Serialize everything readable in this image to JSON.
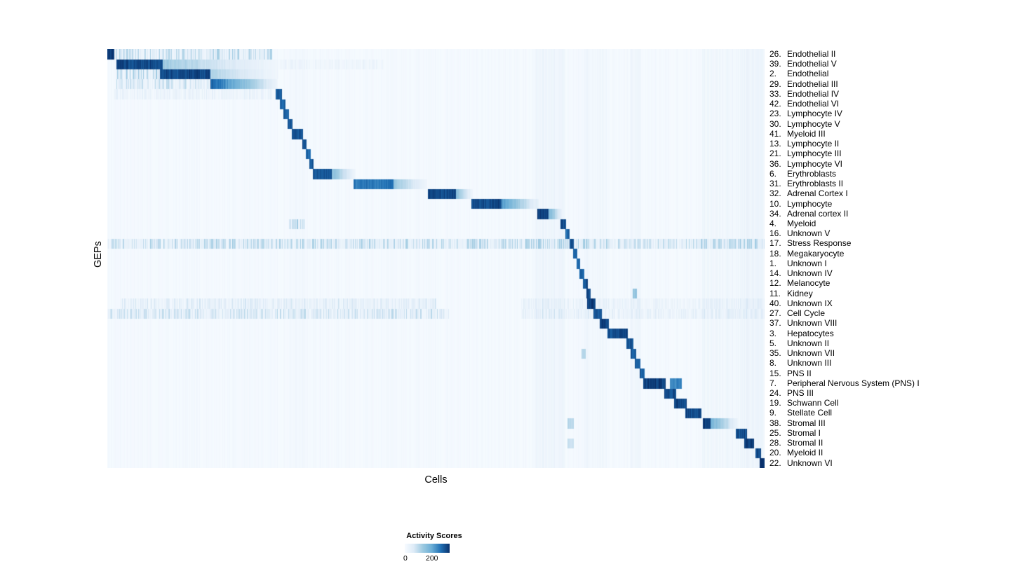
{
  "legend": {
    "title": "Activity Scores",
    "min_label": "0",
    "max_label": "200"
  },
  "chart_data": {
    "type": "heatmap",
    "title": "",
    "xlabel": "Cells",
    "ylabel": "GEPs",
    "value_range": [
      0,
      200
    ],
    "legend_title": "Activity Scores",
    "colormap": [
      "#f7fbff",
      "#deebf7",
      "#9ecae1",
      "#6baed6",
      "#2171b5",
      "#08306b"
    ],
    "column_bands": [
      [
        0.276,
        0.302,
        0.03
      ],
      [
        0.488,
        0.5,
        0.02
      ],
      [
        0.652,
        0.697,
        0.06
      ],
      [
        0.726,
        0.76,
        0.04
      ],
      [
        0.795,
        0.812,
        0.05
      ],
      [
        0.905,
        0.962,
        0.05
      ],
      [
        0.963,
        1.0,
        0.08
      ]
    ],
    "rows": [
      {
        "num": "26.",
        "name": "Endothelial II",
        "segments": [
          [
            0.0,
            0.01,
            1.0,
            0
          ],
          [
            0.012,
            0.25,
            0.22,
            2
          ]
        ]
      },
      {
        "num": "39.",
        "name": "Endothelial V",
        "segments": [
          [
            0.013,
            0.084,
            0.95,
            0
          ],
          [
            0.084,
            0.26,
            0.4,
            1
          ],
          [
            0.26,
            0.42,
            0.06,
            2
          ]
        ]
      },
      {
        "num": "2.",
        "name": "Endothelial",
        "segments": [
          [
            0.013,
            0.08,
            0.25,
            2
          ],
          [
            0.08,
            0.157,
            0.95,
            0
          ],
          [
            0.157,
            0.26,
            0.35,
            1
          ]
        ]
      },
      {
        "num": "29.",
        "name": "Endothelial III",
        "segments": [
          [
            0.013,
            0.155,
            0.18,
            2
          ],
          [
            0.157,
            0.258,
            0.9,
            1
          ]
        ]
      },
      {
        "num": "33.",
        "name": "Endothelial IV",
        "segments": [
          [
            0.256,
            0.265,
            0.9,
            0
          ],
          [
            0.01,
            0.25,
            0.08,
            2
          ]
        ]
      },
      {
        "num": "42.",
        "name": "Endothelial VI",
        "segments": [
          [
            0.262,
            0.271,
            0.85,
            0
          ]
        ]
      },
      {
        "num": "23.",
        "name": "Lymphocyte IV",
        "segments": [
          [
            0.268,
            0.276,
            0.85,
            0
          ]
        ]
      },
      {
        "num": "30.",
        "name": "Lymphocyte V",
        "segments": [
          [
            0.274,
            0.282,
            0.9,
            0
          ]
        ]
      },
      {
        "num": "41.",
        "name": "Myeloid III",
        "segments": [
          [
            0.28,
            0.298,
            0.9,
            0
          ]
        ]
      },
      {
        "num": "13.",
        "name": "Lymphocyte II",
        "segments": [
          [
            0.296,
            0.303,
            0.9,
            0
          ]
        ]
      },
      {
        "num": "21.",
        "name": "Lymphocyte III",
        "segments": [
          [
            0.302,
            0.309,
            0.85,
            0
          ]
        ]
      },
      {
        "num": "36.",
        "name": "Lymphocyte VI",
        "segments": [
          [
            0.307,
            0.314,
            0.9,
            0
          ]
        ]
      },
      {
        "num": "6.",
        "name": "Erythroblasts",
        "segments": [
          [
            0.313,
            0.341,
            0.9,
            0
          ],
          [
            0.341,
            0.378,
            0.5,
            1
          ]
        ]
      },
      {
        "num": "31.",
        "name": "Erythroblasts II",
        "segments": [
          [
            0.374,
            0.435,
            0.8,
            0
          ],
          [
            0.435,
            0.487,
            0.45,
            1
          ]
        ]
      },
      {
        "num": "32.",
        "name": "Adrenal Cortex I",
        "segments": [
          [
            0.488,
            0.53,
            0.95,
            0
          ],
          [
            0.53,
            0.556,
            0.5,
            1
          ]
        ]
      },
      {
        "num": "10.",
        "name": "Lymphocyte",
        "segments": [
          [
            0.554,
            0.6,
            0.95,
            0
          ],
          [
            0.6,
            0.657,
            0.7,
            1
          ]
        ]
      },
      {
        "num": "34.",
        "name": "Adrenal cortex II",
        "segments": [
          [
            0.654,
            0.672,
            0.95,
            0
          ],
          [
            0.672,
            0.692,
            0.5,
            1
          ]
        ]
      },
      {
        "num": "4.",
        "name": "Myeloid",
        "segments": [
          [
            0.69,
            0.698,
            0.9,
            0
          ],
          [
            0.276,
            0.3,
            0.25,
            2
          ]
        ]
      },
      {
        "num": "16.",
        "name": "Unknown V",
        "segments": [
          [
            0.697,
            0.704,
            0.85,
            0
          ]
        ]
      },
      {
        "num": "17.",
        "name": "Stress Response",
        "segments": [
          [
            0.703,
            0.71,
            0.95,
            0
          ],
          [
            0.0,
            1.0,
            0.22,
            2
          ]
        ]
      },
      {
        "num": "18.",
        "name": "Megakaryocyte",
        "segments": [
          [
            0.709,
            0.715,
            0.9,
            0
          ]
        ]
      },
      {
        "num": "1.",
        "name": "Unknown I",
        "segments": [
          [
            0.714,
            0.72,
            0.85,
            0
          ]
        ]
      },
      {
        "num": "14.",
        "name": "Unknown IV",
        "segments": [
          [
            0.719,
            0.726,
            0.85,
            0
          ]
        ]
      },
      {
        "num": "12.",
        "name": "Melanocyte",
        "segments": [
          [
            0.724,
            0.731,
            0.9,
            0
          ]
        ]
      },
      {
        "num": "11.",
        "name": "Kidney",
        "segments": [
          [
            0.729,
            0.736,
            0.9,
            0
          ],
          [
            0.8,
            0.806,
            0.4,
            0
          ]
        ]
      },
      {
        "num": "40.",
        "name": "Unknown IX",
        "segments": [
          [
            0.73,
            0.743,
            0.95,
            0
          ],
          [
            0.02,
            0.5,
            0.13,
            2
          ],
          [
            0.63,
            1.0,
            0.08,
            2
          ]
        ]
      },
      {
        "num": "27.",
        "name": "Cell Cycle",
        "segments": [
          [
            0.74,
            0.753,
            0.9,
            0
          ],
          [
            0.0,
            0.52,
            0.18,
            2
          ],
          [
            0.63,
            1.0,
            0.1,
            2
          ]
        ]
      },
      {
        "num": "37.",
        "name": "Unknown VIII",
        "segments": [
          [
            0.749,
            0.763,
            0.95,
            0
          ]
        ]
      },
      {
        "num": "3.",
        "name": "Hepatocytes",
        "segments": [
          [
            0.761,
            0.792,
            0.95,
            0
          ]
        ]
      },
      {
        "num": "5.",
        "name": "Unknown II",
        "segments": [
          [
            0.79,
            0.801,
            0.9,
            0
          ]
        ]
      },
      {
        "num": "35.",
        "name": "Unknown VII",
        "segments": [
          [
            0.797,
            0.805,
            0.85,
            0
          ],
          [
            0.722,
            0.728,
            0.3,
            0
          ]
        ]
      },
      {
        "num": "8.",
        "name": "Unknown III",
        "segments": [
          [
            0.803,
            0.811,
            0.85,
            0
          ]
        ]
      },
      {
        "num": "15.",
        "name": "PNS II",
        "segments": [
          [
            0.81,
            0.818,
            0.9,
            0
          ]
        ]
      },
      {
        "num": "7.",
        "name": "Peripheral Nervous System (PNS) I",
        "segments": [
          [
            0.816,
            0.85,
            1.0,
            0
          ],
          [
            0.856,
            0.874,
            0.75,
            0
          ]
        ]
      },
      {
        "num": "24.",
        "name": "PNS III",
        "segments": [
          [
            0.848,
            0.866,
            0.95,
            0
          ]
        ]
      },
      {
        "num": "19.",
        "name": "Schwann Cell",
        "segments": [
          [
            0.863,
            0.882,
            0.95,
            0
          ]
        ]
      },
      {
        "num": "9.",
        "name": "Stellate Cell",
        "segments": [
          [
            0.88,
            0.904,
            0.95,
            0
          ]
        ]
      },
      {
        "num": "38.",
        "name": "Stromal III",
        "segments": [
          [
            0.906,
            0.918,
            0.95,
            0
          ],
          [
            0.918,
            0.96,
            0.55,
            1
          ],
          [
            0.7,
            0.71,
            0.3,
            0
          ]
        ]
      },
      {
        "num": "25.",
        "name": "Stromal I",
        "segments": [
          [
            0.957,
            0.974,
            0.9,
            0
          ]
        ]
      },
      {
        "num": "28.",
        "name": "Stromal II",
        "segments": [
          [
            0.97,
            0.985,
            0.95,
            0
          ],
          [
            0.7,
            0.71,
            0.25,
            0
          ]
        ]
      },
      {
        "num": "20.",
        "name": "Myeloid II",
        "segments": [
          [
            0.987,
            0.995,
            0.9,
            0
          ]
        ]
      },
      {
        "num": "22.",
        "name": "Unknown VI",
        "segments": [
          [
            0.993,
            1.0,
            1.0,
            0
          ]
        ]
      }
    ]
  }
}
